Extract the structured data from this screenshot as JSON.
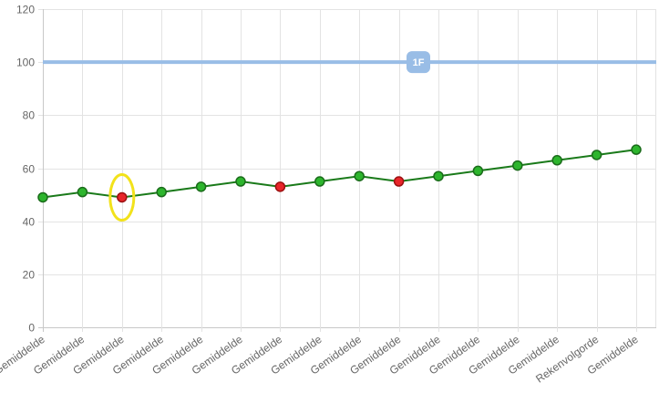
{
  "chart_data": {
    "type": "line",
    "categories": [
      "Gemiddelde",
      "Gemiddelde",
      "Gemiddelde",
      "Gemiddelde",
      "Gemiddelde",
      "Gemiddelde",
      "Gemiddelde",
      "Gemiddelde",
      "Gemiddelde",
      "Gemiddelde",
      "Gemiddelde",
      "Gemiddelde",
      "Gemiddelde",
      "Gemiddelde",
      "Rekenvolgorde",
      "Gemiddelde"
    ],
    "series": [
      {
        "values": [
          49,
          51,
          49,
          51,
          53,
          55,
          53,
          55,
          57,
          55,
          57,
          59,
          61,
          63,
          65,
          67
        ],
        "point_status": [
          "ok",
          "ok",
          "low",
          "ok",
          "ok",
          "ok",
          "low",
          "ok",
          "ok",
          "low",
          "ok",
          "ok",
          "ok",
          "ok",
          "ok",
          "ok"
        ]
      }
    ],
    "ylim": [
      0,
      120
    ],
    "yticks": [
      0,
      20,
      40,
      60,
      80,
      100,
      120
    ],
    "grid": true,
    "reference_line": {
      "value": 100,
      "label": "1F",
      "color": "#99bde6"
    },
    "highlight_index": 2,
    "colors": {
      "line": "#1a7a1a",
      "point_ok": "#2db52d",
      "point_low": "#e8262a",
      "point_stroke_ok": "#1a6b1a",
      "point_stroke_low": "#9b1010",
      "highlight": "#f2e21b",
      "grid": "#e3e3e3",
      "axis": "#c8c8c8"
    }
  }
}
